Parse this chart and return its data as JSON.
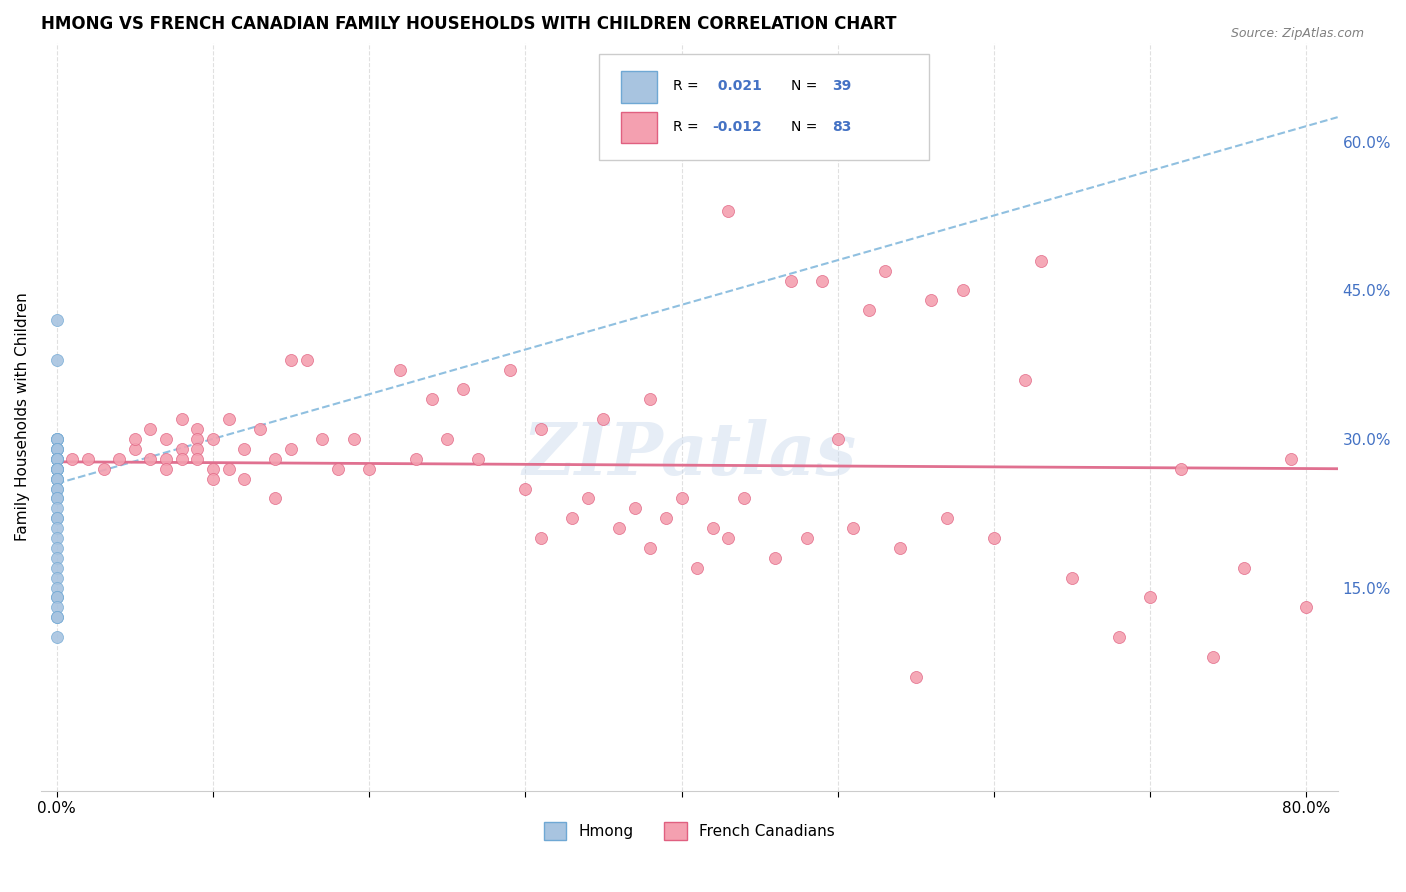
{
  "title": "HMONG VS FRENCH CANADIAN FAMILY HOUSEHOLDS WITH CHILDREN CORRELATION CHART",
  "source": "Source: ZipAtlas.com",
  "ylabel": "Family Households with Children",
  "watermark": "ZIPatlas",
  "legend_r_hmong": "0.021",
  "legend_n_hmong": "39",
  "legend_r_french": "-0.012",
  "legend_n_french": "83",
  "hmong_color": "#a8c4e0",
  "hmong_color_dark": "#6fa8d4",
  "french_color": "#f4a0b0",
  "french_color_dark": "#e06080",
  "trendline_hmong_color": "#90c0e0",
  "trendline_french_color": "#e07090",
  "grid_color": "#dddddd",
  "background_color": "#ffffff",
  "xlim": [
    -0.01,
    0.82
  ],
  "ylim": [
    -0.055,
    0.7
  ],
  "hmong_trendline": [
    [
      0.0,
      0.255
    ],
    [
      0.82,
      0.625
    ]
  ],
  "french_trendline": [
    [
      0.0,
      0.277
    ],
    [
      0.82,
      0.27
    ]
  ],
  "hmong_x": [
    0.0,
    0.0,
    0.0,
    0.0,
    0.0,
    0.0,
    0.0,
    0.0,
    0.0,
    0.0,
    0.0,
    0.0,
    0.0,
    0.0,
    0.0,
    0.0,
    0.0,
    0.0,
    0.0,
    0.0,
    0.0,
    0.0,
    0.0,
    0.0,
    0.0,
    0.0,
    0.0,
    0.0,
    0.0,
    0.0,
    0.0,
    0.0,
    0.0,
    0.0,
    0.0,
    0.0,
    0.0,
    0.0,
    0.0
  ],
  "hmong_y": [
    0.42,
    0.38,
    0.3,
    0.3,
    0.3,
    0.29,
    0.29,
    0.29,
    0.28,
    0.28,
    0.28,
    0.28,
    0.27,
    0.27,
    0.27,
    0.27,
    0.26,
    0.26,
    0.26,
    0.25,
    0.25,
    0.24,
    0.24,
    0.23,
    0.22,
    0.22,
    0.21,
    0.2,
    0.19,
    0.18,
    0.17,
    0.16,
    0.15,
    0.14,
    0.14,
    0.13,
    0.12,
    0.12,
    0.1
  ],
  "french_x": [
    0.01,
    0.02,
    0.03,
    0.04,
    0.05,
    0.05,
    0.06,
    0.06,
    0.07,
    0.07,
    0.07,
    0.08,
    0.08,
    0.08,
    0.09,
    0.09,
    0.09,
    0.09,
    0.1,
    0.1,
    0.1,
    0.11,
    0.11,
    0.12,
    0.12,
    0.13,
    0.14,
    0.14,
    0.15,
    0.15,
    0.16,
    0.17,
    0.18,
    0.19,
    0.2,
    0.22,
    0.23,
    0.24,
    0.25,
    0.26,
    0.27,
    0.29,
    0.3,
    0.31,
    0.31,
    0.33,
    0.34,
    0.35,
    0.36,
    0.37,
    0.38,
    0.38,
    0.39,
    0.4,
    0.41,
    0.42,
    0.43,
    0.43,
    0.44,
    0.46,
    0.47,
    0.48,
    0.49,
    0.5,
    0.51,
    0.52,
    0.53,
    0.54,
    0.55,
    0.56,
    0.57,
    0.58,
    0.6,
    0.62,
    0.63,
    0.65,
    0.68,
    0.7,
    0.72,
    0.74,
    0.76,
    0.79,
    0.8
  ],
  "french_y": [
    0.28,
    0.28,
    0.27,
    0.28,
    0.29,
    0.3,
    0.31,
    0.28,
    0.3,
    0.28,
    0.27,
    0.32,
    0.29,
    0.28,
    0.31,
    0.3,
    0.29,
    0.28,
    0.3,
    0.27,
    0.26,
    0.32,
    0.27,
    0.29,
    0.26,
    0.31,
    0.28,
    0.24,
    0.38,
    0.29,
    0.38,
    0.3,
    0.27,
    0.3,
    0.27,
    0.37,
    0.28,
    0.34,
    0.3,
    0.35,
    0.28,
    0.37,
    0.25,
    0.31,
    0.2,
    0.22,
    0.24,
    0.32,
    0.21,
    0.23,
    0.34,
    0.19,
    0.22,
    0.24,
    0.17,
    0.21,
    0.53,
    0.2,
    0.24,
    0.18,
    0.46,
    0.2,
    0.46,
    0.3,
    0.21,
    0.43,
    0.47,
    0.19,
    0.06,
    0.44,
    0.22,
    0.45,
    0.2,
    0.36,
    0.48,
    0.16,
    0.1,
    0.14,
    0.27,
    0.08,
    0.17,
    0.28,
    0.13
  ]
}
